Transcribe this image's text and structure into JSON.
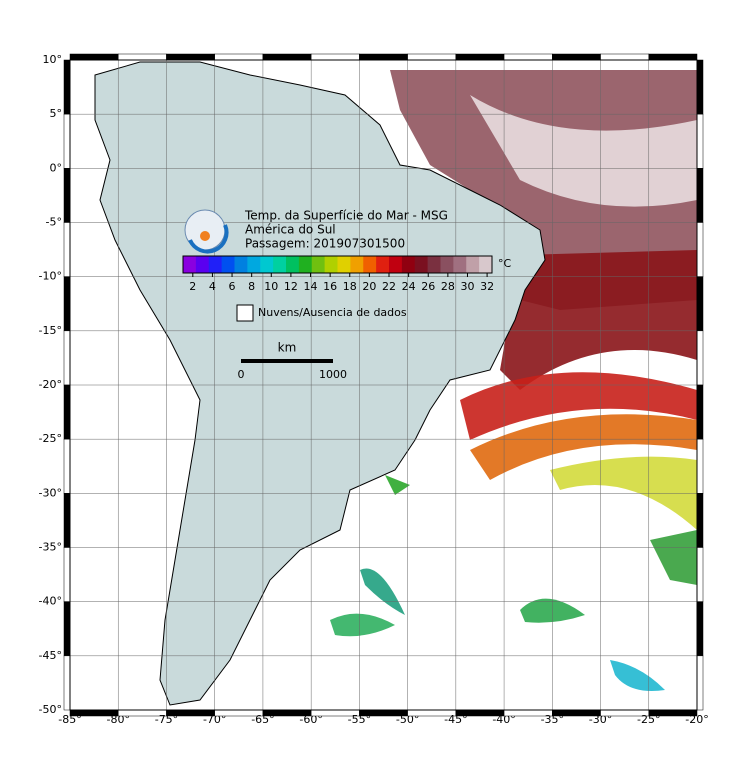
{
  "map": {
    "title": "Temp. da Superfície do Mar - MSG",
    "subtitle": "América do Sul",
    "pass": "Passagem: 201907301500",
    "xlim": [
      -85,
      -20
    ],
    "ylim": [
      -50,
      10
    ],
    "xticks": [
      {
        "value": -85,
        "label": "-85°"
      },
      {
        "value": -80,
        "label": "-80°"
      },
      {
        "value": -75,
        "label": "-75°"
      },
      {
        "value": -70,
        "label": "-70°"
      },
      {
        "value": -65,
        "label": "-65°"
      },
      {
        "value": -60,
        "label": "-60°"
      },
      {
        "value": -55,
        "label": "-55°"
      },
      {
        "value": -50,
        "label": "-50°"
      },
      {
        "value": -45,
        "label": "-45°"
      },
      {
        "value": -40,
        "label": "-40°"
      },
      {
        "value": -35,
        "label": "-35°"
      },
      {
        "value": -30,
        "label": "-30°"
      },
      {
        "value": -25,
        "label": "-25°"
      },
      {
        "value": -20,
        "label": "-20°"
      }
    ],
    "yticks": [
      {
        "value": 10,
        "label": "10°"
      },
      {
        "value": 5,
        "label": "5°"
      },
      {
        "value": 0,
        "label": "0°"
      },
      {
        "value": -5,
        "label": "-5°"
      },
      {
        "value": -10,
        "label": "-10°"
      },
      {
        "value": -15,
        "label": "-15°"
      },
      {
        "value": -20,
        "label": "-20°"
      },
      {
        "value": -25,
        "label": "-25°"
      },
      {
        "value": -30,
        "label": "-30°"
      },
      {
        "value": -35,
        "label": "-35°"
      },
      {
        "value": -40,
        "label": "-40°"
      },
      {
        "value": -45,
        "label": "-45°"
      },
      {
        "value": -50,
        "label": "-50°"
      }
    ],
    "grid": true,
    "colorbar": {
      "unit": "°C",
      "lim": [
        1,
        32.5
      ],
      "ticks": [
        2,
        4,
        6,
        8,
        10,
        12,
        14,
        16,
        18,
        20,
        22,
        24,
        26,
        28,
        30,
        32
      ],
      "colors": [
        "#8a00e0",
        "#5a00f0",
        "#2020f8",
        "#0050f0",
        "#0080e0",
        "#00a8e0",
        "#00c8d0",
        "#00d0a0",
        "#00c060",
        "#20b020",
        "#70c010",
        "#b0d000",
        "#e0d000",
        "#f0a000",
        "#f06000",
        "#e02010",
        "#c00010",
        "#900010",
        "#7a1020",
        "#7a3040",
        "#8a5060",
        "#a07080",
        "#c0a0a8",
        "#d8c8cc"
      ]
    },
    "legend": "Nuvens/Ausencia de dados",
    "scale_bar": {
      "unit": "km",
      "ticks": [
        0,
        1000
      ]
    }
  }
}
